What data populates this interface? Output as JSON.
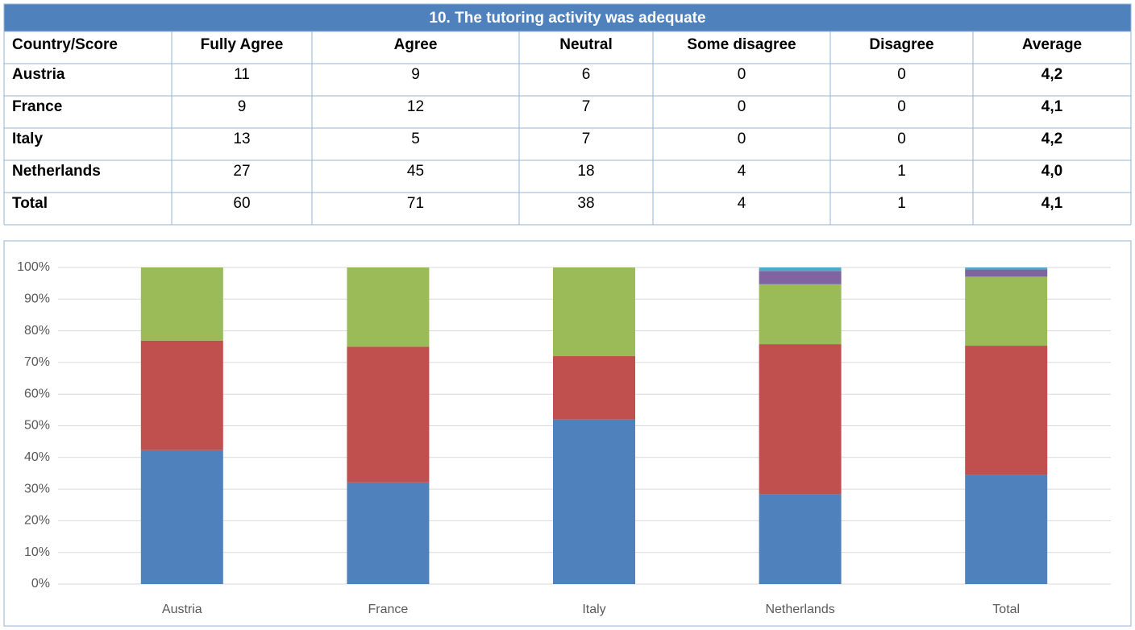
{
  "table": {
    "title": "10. The tutoring activity was adequate",
    "columns": [
      "Country/Score",
      "Fully Agree",
      "Agree",
      "Neutral",
      "Some disagree",
      "Disagree",
      "Average"
    ],
    "rows": [
      [
        "Austria",
        11,
        9,
        6,
        0,
        0,
        "4,2"
      ],
      [
        "France",
        9,
        12,
        7,
        0,
        0,
        "4,1"
      ],
      [
        "Italy",
        13,
        5,
        7,
        0,
        0,
        "4,2"
      ],
      [
        "Netherlands",
        27,
        45,
        18,
        4,
        1,
        "4,0"
      ],
      [
        "Total",
        60,
        71,
        38,
        4,
        1,
        "4,1"
      ]
    ]
  },
  "chart_data": {
    "type": "stacked_bar",
    "categories": [
      "Austria",
      "France",
      "Italy",
      "Netherlands",
      "Total"
    ],
    "series": [
      {
        "color": "#4f81bd",
        "values": [
          42.3,
          32.1,
          52,
          28.4,
          34.5
        ]
      },
      {
        "color": "#c0504d",
        "values": [
          34.6,
          42.9,
          20,
          47.4,
          40.8
        ]
      },
      {
        "color": "#9bbb59",
        "values": [
          23.1,
          25,
          28,
          18.9,
          21.8
        ]
      },
      {
        "color": "#8064a2",
        "values": [
          0,
          0,
          0,
          4.2,
          2.3
        ]
      },
      {
        "color": "#4bacc6",
        "values": [
          0,
          0,
          0,
          1.1,
          0.6
        ]
      }
    ],
    "ylim": [
      0,
      100
    ],
    "yticks": [
      {
        "value": 0,
        "label": "0%"
      },
      {
        "value": 10,
        "label": "10%"
      },
      {
        "value": 20,
        "label": "20%"
      },
      {
        "value": 30,
        "label": "30%"
      },
      {
        "value": 40,
        "label": "40%"
      },
      {
        "value": 50,
        "label": "50%"
      },
      {
        "value": 60,
        "label": "60%"
      },
      {
        "value": 70,
        "label": "70%"
      },
      {
        "value": 80,
        "label": "80%"
      },
      {
        "value": 90,
        "label": "90%"
      },
      {
        "value": 100,
        "label": "100%"
      }
    ],
    "grid": true
  }
}
